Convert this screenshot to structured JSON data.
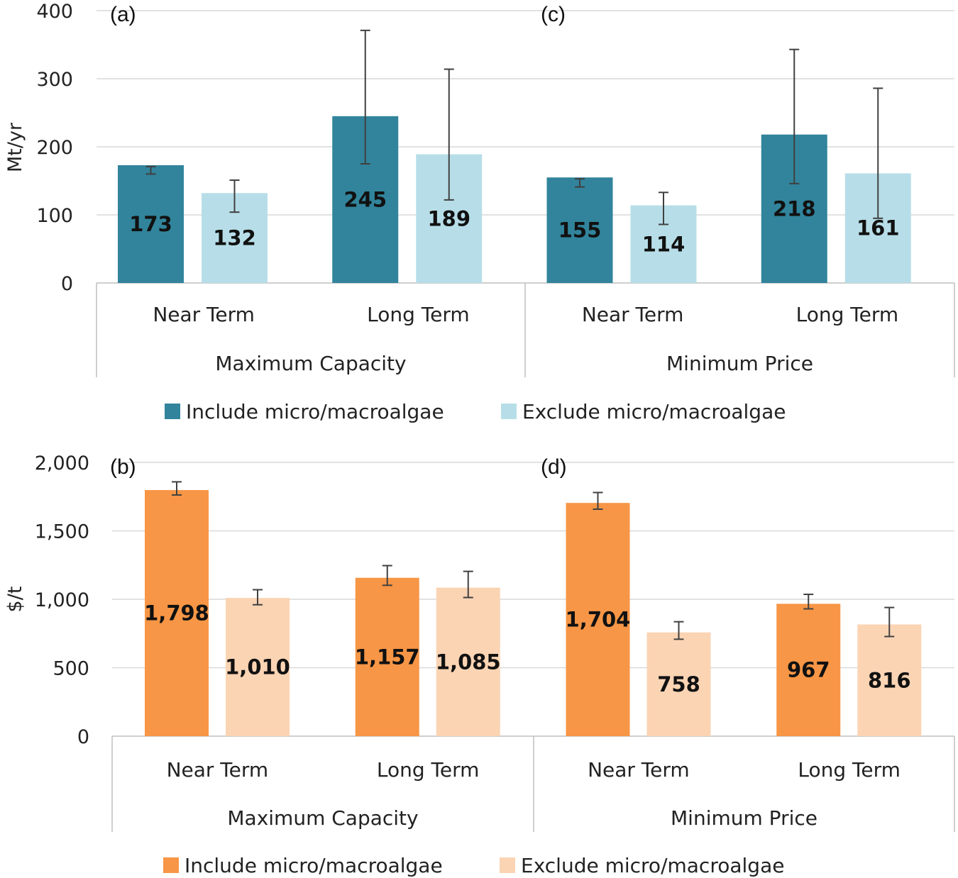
{
  "chart_data": [
    {
      "type": "bar",
      "ylabel": "Mt/yr",
      "ylim": [
        0,
        400
      ],
      "yticks": [
        "0",
        "100",
        "200",
        "300",
        "400"
      ],
      "categories": [
        "Near Term",
        "Long Term",
        "Near Term",
        "Long Term"
      ],
      "groups": [
        "Maximum Capacity",
        "Minimum Price"
      ],
      "panels": [
        "(a)",
        "(c)"
      ],
      "series": [
        {
          "name": "Include micro/macroalgae",
          "color": "#31849b",
          "values": [
            173,
            245,
            155,
            218
          ],
          "labels": [
            "173",
            "245",
            "155",
            "218"
          ],
          "err_low": [
            160,
            175,
            141,
            146
          ],
          "err_high": [
            171,
            371,
            153,
            343
          ]
        },
        {
          "name": "Exclude micro/macroalgae",
          "color": "#b7dee8",
          "values": [
            132,
            189,
            114,
            161
          ],
          "labels": [
            "132",
            "189",
            "114",
            "161"
          ],
          "err_low": [
            104,
            122,
            86,
            95
          ],
          "err_high": [
            151,
            314,
            133,
            286
          ]
        }
      ]
    },
    {
      "type": "bar",
      "ylabel": "$/t",
      "ylim": [
        0,
        2000
      ],
      "yticks": [
        "0",
        "500",
        "1,000",
        "1,500",
        "2,000"
      ],
      "categories": [
        "Near Term",
        "Long Term",
        "Near Term",
        "Long Term"
      ],
      "groups": [
        "Maximum Capacity",
        "Minimum Price"
      ],
      "panels": [
        "(b)",
        "(d)"
      ],
      "series": [
        {
          "name": "Include micro/macroalgae",
          "color": "#f79646",
          "values": [
            1798,
            1157,
            1704,
            967
          ],
          "labels": [
            "1,798",
            "1,157",
            "1,704",
            "967"
          ],
          "err_low": [
            1762,
            1102,
            1658,
            930
          ],
          "err_high": [
            1858,
            1246,
            1780,
            1036
          ]
        },
        {
          "name": "Exclude micro/macroalgae",
          "color": "#fbd4b4",
          "values": [
            1010,
            1085,
            758,
            816
          ],
          "labels": [
            "1,010",
            "1,085",
            "758",
            "816"
          ],
          "err_low": [
            960,
            1013,
            708,
            728
          ],
          "err_high": [
            1070,
            1204,
            836,
            940
          ]
        }
      ]
    }
  ]
}
